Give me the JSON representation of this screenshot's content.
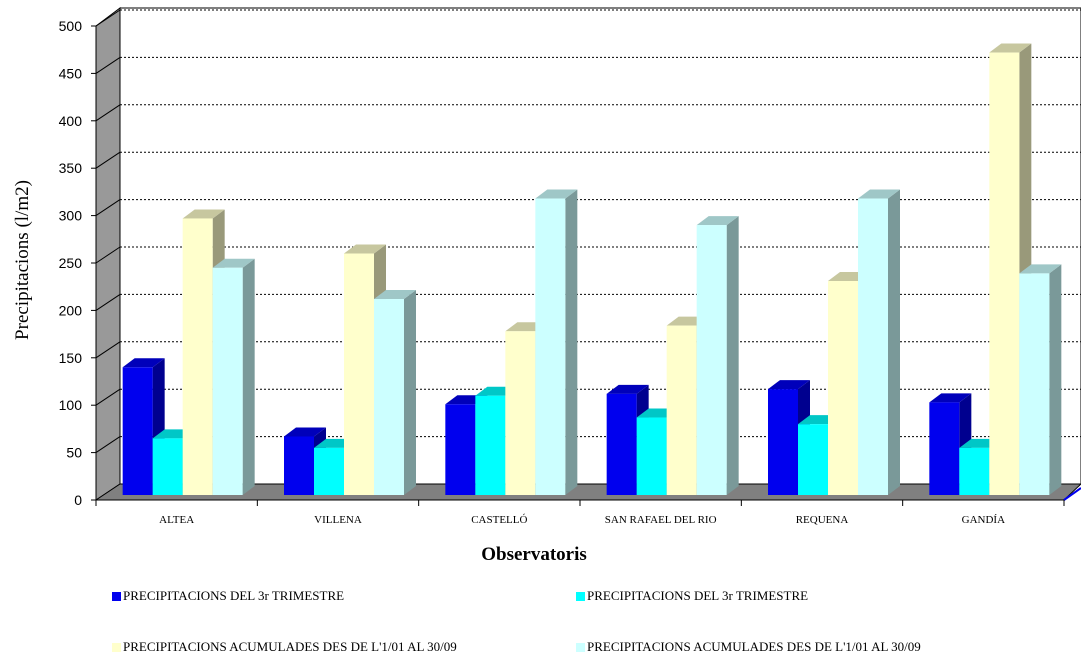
{
  "chart_data": {
    "type": "bar",
    "ylabel": "Precipitacions (l/m2)",
    "xlabel": "Observatoris",
    "ylim": [
      0,
      500
    ],
    "yticks": [
      0,
      50,
      100,
      150,
      200,
      250,
      300,
      350,
      400,
      450,
      500
    ],
    "grid": "horizontal dotted",
    "legend_position": "bottom",
    "categories": [
      "ALTEA",
      "VILLENA",
      "CASTELLÓ",
      "SAN RAFAEL DEL RIO",
      "REQUENA",
      "GANDÍA"
    ],
    "series": [
      {
        "name": "PRECIPITACIONS DEL 3r TRIMESTRE",
        "color": "#0000ee",
        "values": [
          140,
          67,
          101,
          112,
          117,
          103
        ]
      },
      {
        "name": "PRECIPITACIONS DEL 3r TRIMESTRE",
        "color": "#00ffff",
        "values": [
          65,
          55,
          110,
          87,
          80,
          55
        ]
      },
      {
        "name": "PRECIPITACIONS ACUMULADES DES DE L'1/01 AL 30/09",
        "color": "#ffffcc",
        "values": [
          297,
          260,
          178,
          184,
          231,
          472
        ]
      },
      {
        "name": "PRECIPITACIONS ACUMULADES DES DE L'1/01 AL 30/09",
        "color": "#ccffff",
        "values": [
          245,
          212,
          318,
          290,
          318,
          239
        ]
      }
    ]
  }
}
